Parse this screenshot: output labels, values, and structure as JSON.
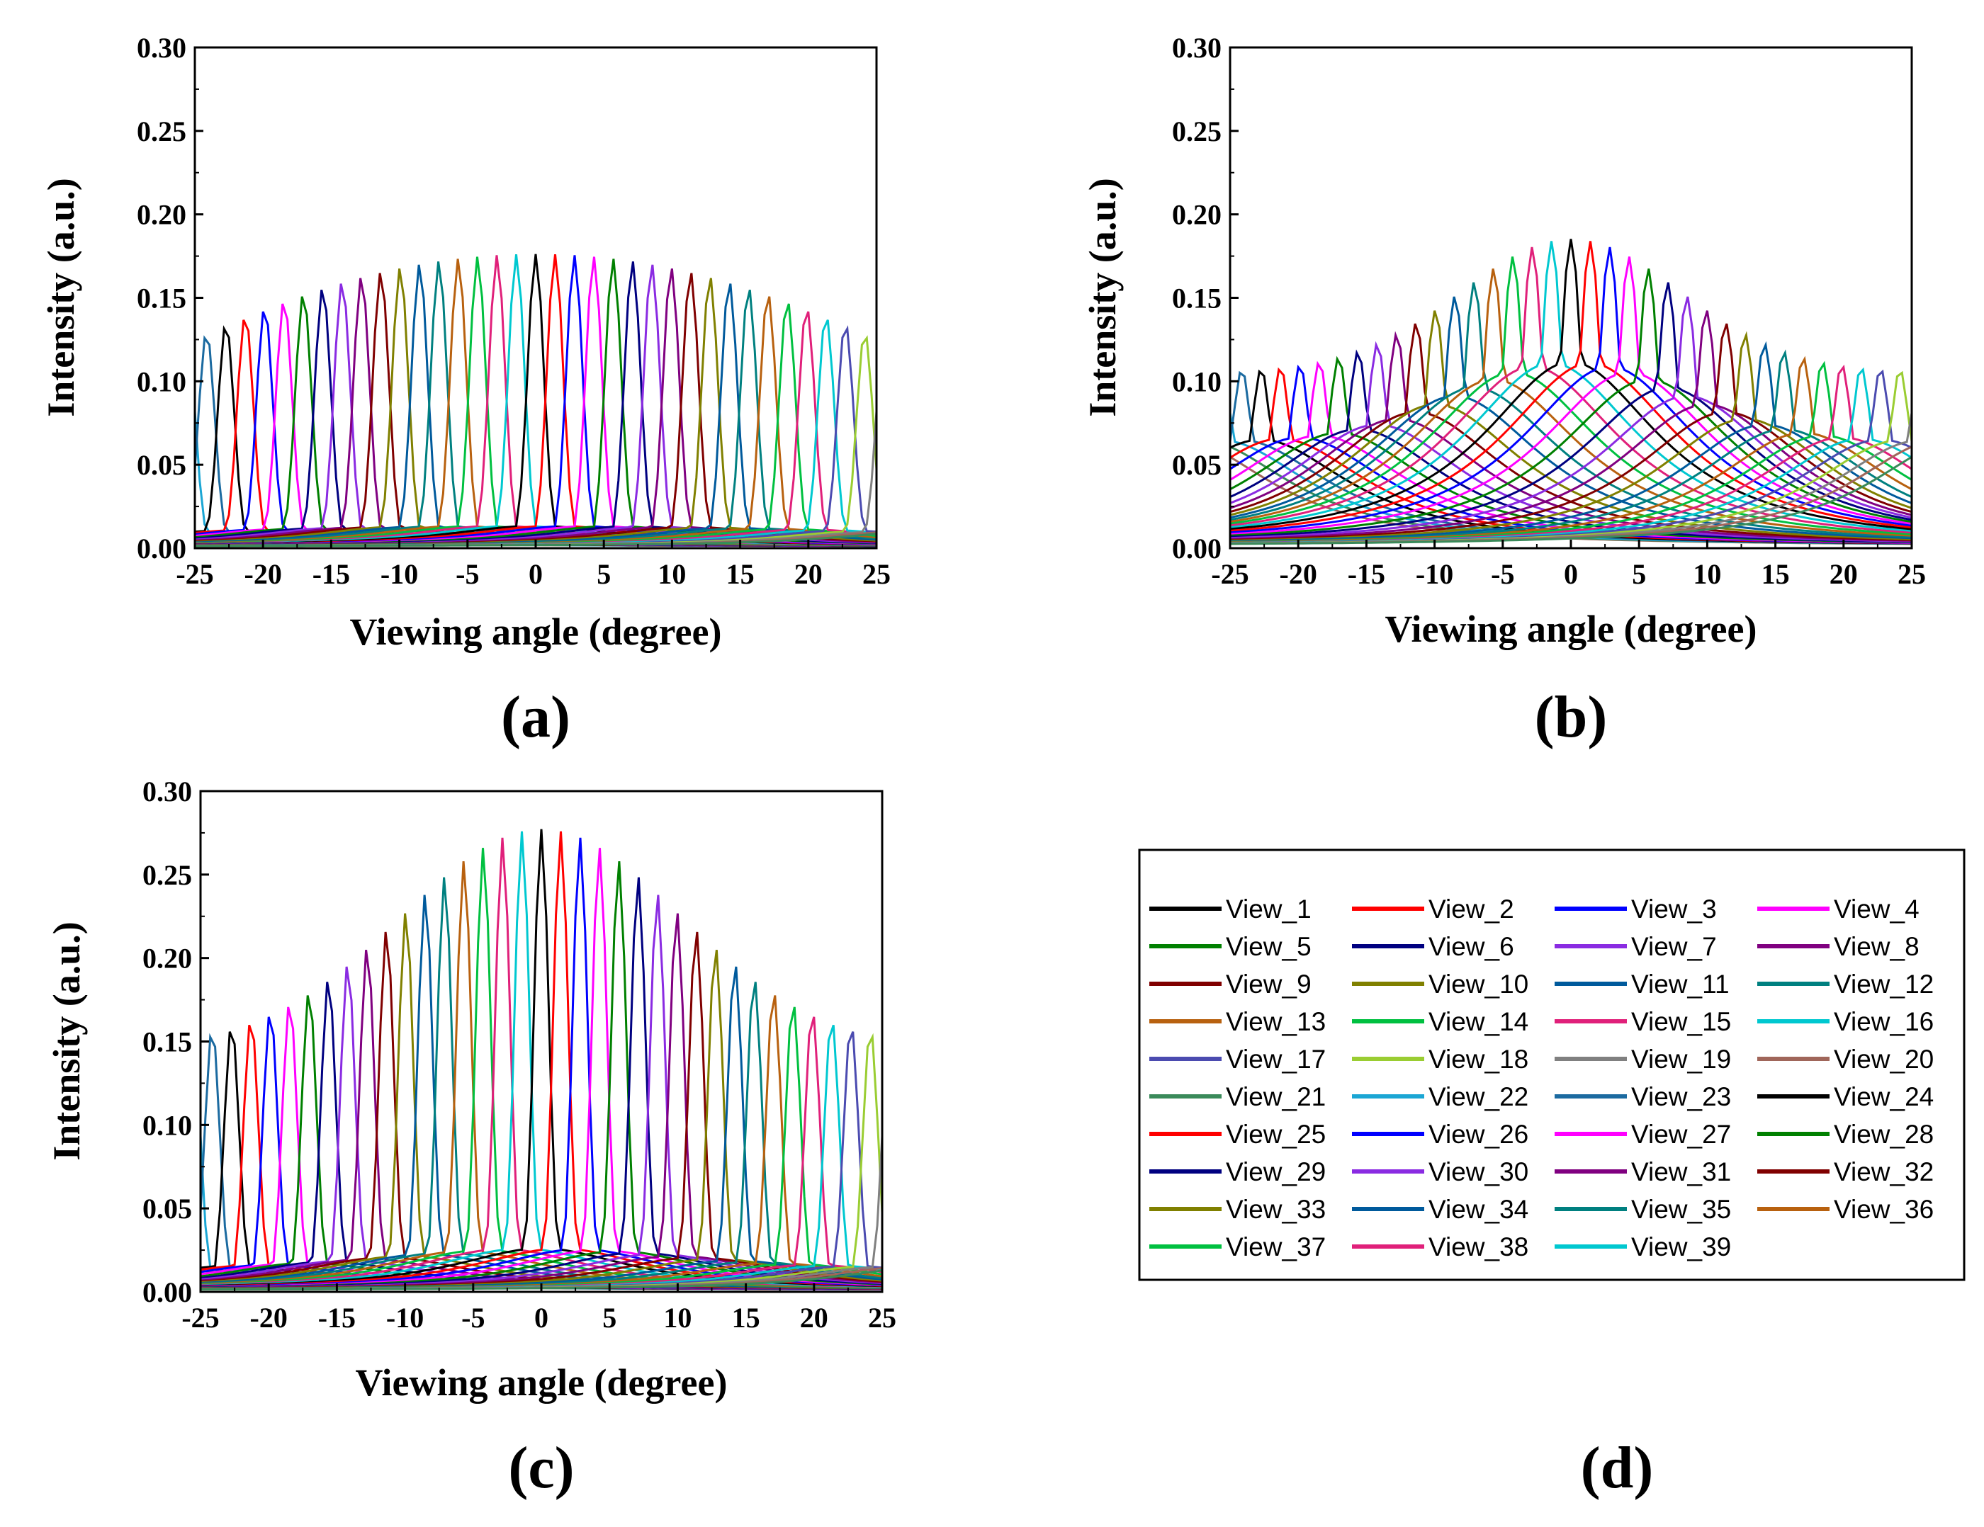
{
  "chart_data": [
    {
      "panel": "(a)",
      "type": "line",
      "xlabel": "Viewing angle (degree)",
      "ylabel": "Intensity (a.u.)",
      "xlim": [
        -25,
        25
      ],
      "ylim": [
        0,
        0.3
      ],
      "x_ticks": [
        "-25",
        "-20",
        "-15",
        "-10",
        "-5",
        "0",
        "5",
        "10",
        "15",
        "20",
        "25"
      ],
      "y_ticks": [
        "0.00",
        "0.05",
        "0.10",
        "0.15",
        "0.20",
        "0.25",
        "0.30"
      ],
      "lobe_spacing_deg": 1.42,
      "lobe_width_deg": 0.6,
      "peak_center": 0.175,
      "peak_edge": 0.125,
      "side_fraction": 0.07,
      "series_note": "View_1 ... View_39, each view repeats periodically across the angular range"
    },
    {
      "panel": "(b)",
      "type": "line",
      "xlabel": "Viewing angle (degree)",
      "ylabel": "Intensity (a.u.)",
      "xlim": [
        -25,
        25
      ],
      "ylim": [
        0,
        0.3
      ],
      "x_ticks": [
        "-25",
        "-20",
        "-15",
        "-10",
        "-5",
        "0",
        "5",
        "10",
        "15",
        "20",
        "25"
      ],
      "y_ticks": [
        "0.00",
        "0.05",
        "0.10",
        "0.15",
        "0.20",
        "0.25",
        "0.30"
      ],
      "lobe_spacing_deg": 1.42,
      "lobe_width_deg": 0.75,
      "peak_center": 0.184,
      "peak_edge": 0.105,
      "peak_falloff_deg": 8,
      "side_fraction": 0.6,
      "series_note": "View_1 ... View_39"
    },
    {
      "panel": "(c)",
      "type": "line",
      "xlabel": "Viewing angle (degree)",
      "ylabel": "Intensity (a.u.)",
      "xlim": [
        -25,
        25
      ],
      "ylim": [
        0,
        0.3
      ],
      "x_ticks": [
        "-25",
        "-20",
        "-15",
        "-10",
        "-5",
        "0",
        "5",
        "10",
        "15",
        "20",
        "25"
      ],
      "y_ticks": [
        "0.00",
        "0.05",
        "0.10",
        "0.15",
        "0.20",
        "0.25",
        "0.30"
      ],
      "lobe_spacing_deg": 1.42,
      "lobe_width_deg": 0.55,
      "peak_center": 0.276,
      "peak_edge": 0.15,
      "peak_falloff_deg": 10,
      "side_fraction": 0.09,
      "series_note": "View_1 ... View_39"
    }
  ],
  "legend": {
    "panel": "(d)",
    "entries": [
      {
        "label": "View_1",
        "color": "#000000"
      },
      {
        "label": "View_2",
        "color": "#ff0000"
      },
      {
        "label": "View_3",
        "color": "#0000ff"
      },
      {
        "label": "View_4",
        "color": "#ff00ff"
      },
      {
        "label": "View_5",
        "color": "#008000"
      },
      {
        "label": "View_6",
        "color": "#000080"
      },
      {
        "label": "View_7",
        "color": "#8a2be2"
      },
      {
        "label": "View_8",
        "color": "#800080"
      },
      {
        "label": "View_9",
        "color": "#800000"
      },
      {
        "label": "View_10",
        "color": "#808000"
      },
      {
        "label": "View_11",
        "color": "#005a9c"
      },
      {
        "label": "View_12",
        "color": "#008080"
      },
      {
        "label": "View_13",
        "color": "#b8610f"
      },
      {
        "label": "View_14",
        "color": "#00c040"
      },
      {
        "label": "View_15",
        "color": "#e0207a"
      },
      {
        "label": "View_16",
        "color": "#00c8d0"
      },
      {
        "label": "View_17",
        "color": "#4b4bb0"
      },
      {
        "label": "View_18",
        "color": "#9acd32"
      },
      {
        "label": "View_19",
        "color": "#808080"
      },
      {
        "label": "View_20",
        "color": "#a0665a"
      },
      {
        "label": "View_21",
        "color": "#3a8a5a"
      },
      {
        "label": "View_22",
        "color": "#1ba6d4"
      },
      {
        "label": "View_23",
        "color": "#1b6aa0"
      },
      {
        "label": "View_24",
        "color": "#000000"
      },
      {
        "label": "View_25",
        "color": "#ff0000"
      },
      {
        "label": "View_26",
        "color": "#0000ff"
      },
      {
        "label": "View_27",
        "color": "#ff00ff"
      },
      {
        "label": "View_28",
        "color": "#008000"
      },
      {
        "label": "View_29",
        "color": "#000080"
      },
      {
        "label": "View_30",
        "color": "#8a2be2"
      },
      {
        "label": "View_31",
        "color": "#800080"
      },
      {
        "label": "View_32",
        "color": "#800000"
      },
      {
        "label": "View_33",
        "color": "#808000"
      },
      {
        "label": "View_34",
        "color": "#005a9c"
      },
      {
        "label": "View_35",
        "color": "#008080"
      },
      {
        "label": "View_36",
        "color": "#b8610f"
      },
      {
        "label": "View_37",
        "color": "#00c040"
      },
      {
        "label": "View_38",
        "color": "#e0207a"
      },
      {
        "label": "View_39",
        "color": "#00c8d0"
      }
    ]
  },
  "panel_labels": {
    "a": "(a)",
    "b": "(b)",
    "c": "(c)",
    "d": "(d)"
  }
}
